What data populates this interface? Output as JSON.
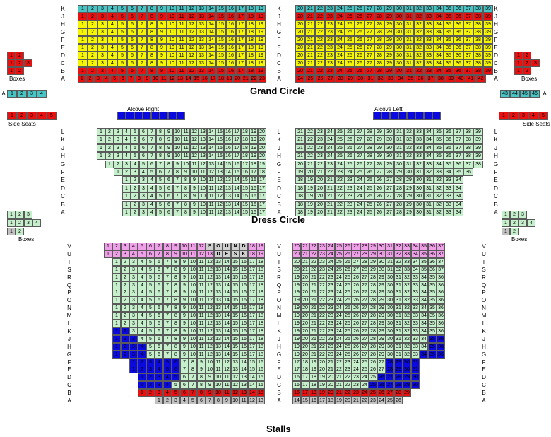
{
  "titles": {
    "grand_circle": "Grand Circle",
    "dress_circle": "Dress Circle",
    "stalls": "Stalls"
  },
  "labels": {
    "boxes": "Boxes",
    "side_seats": "Side Seats",
    "alcove_right": "Alcove Right",
    "alcove_left": "Alcove Left",
    "sound": [
      "S",
      "O",
      "U",
      "N",
      "D"
    ],
    "desk": [
      "D",
      "E",
      "S",
      "K"
    ]
  },
  "colors": {
    "teal": "#49c4c4",
    "yellow": "#f6f600",
    "red": "#ea1010",
    "green": "#c6f0cc",
    "blue": "#0a0ae0",
    "pink": "#f0a0e8",
    "grey": "#c2c2c2"
  },
  "grand_circle": {
    "rows": [
      {
        "row": "K",
        "left": [
          1,
          19
        ],
        "right": [
          20,
          39
        ],
        "color": "teal"
      },
      {
        "row": "J",
        "left": [
          1,
          19
        ],
        "right": [
          20,
          39
        ],
        "color": "red"
      },
      {
        "row": "H",
        "left": [
          1,
          19
        ],
        "right": [
          20,
          39
        ],
        "color": "yellow"
      },
      {
        "row": "G",
        "left": [
          1,
          19
        ],
        "right": [
          20,
          39
        ],
        "color": "yellow"
      },
      {
        "row": "F",
        "left": [
          1,
          19
        ],
        "right": [
          20,
          39
        ],
        "color": "yellow"
      },
      {
        "row": "E",
        "left": [
          1,
          19
        ],
        "right": [
          20,
          39
        ],
        "color": "yellow"
      },
      {
        "row": "D",
        "left": [
          1,
          19
        ],
        "right": [
          20,
          39
        ],
        "color": "yellow"
      },
      {
        "row": "C",
        "left": [
          1,
          19
        ],
        "right": [
          20,
          39
        ],
        "color": "yellow"
      },
      {
        "row": "B",
        "left": [
          1,
          19
        ],
        "right": [
          20,
          39
        ],
        "color": "red"
      },
      {
        "row": "A",
        "left": [
          1,
          23
        ],
        "right": [
          24,
          42
        ],
        "color": "red"
      }
    ],
    "side_a_left": [
      1,
      2,
      3,
      4
    ],
    "side_a_right": [
      43,
      44,
      45,
      46
    ],
    "side_seats": [
      1,
      2,
      3,
      4,
      5
    ]
  },
  "dress_circle": {
    "rows": [
      {
        "row": "L",
        "left": [
          1,
          20
        ],
        "right": [
          21,
          39
        ]
      },
      {
        "row": "K",
        "left": [
          1,
          20
        ],
        "right": [
          21,
          39
        ]
      },
      {
        "row": "J",
        "left": [
          1,
          20
        ],
        "right": [
          21,
          39
        ]
      },
      {
        "row": "H",
        "left": [
          1,
          20
        ],
        "right": [
          21,
          39
        ]
      },
      {
        "row": "G",
        "left": [
          1,
          19
        ],
        "right": [
          20,
          38
        ]
      },
      {
        "row": "F",
        "left": [
          1,
          18
        ],
        "right": [
          19,
          36
        ]
      },
      {
        "row": "E",
        "left": [
          1,
          17
        ],
        "right": [
          18,
          34
        ]
      },
      {
        "row": "D",
        "left": [
          1,
          17
        ],
        "right": [
          18,
          34
        ]
      },
      {
        "row": "C",
        "left": [
          1,
          17
        ],
        "right": [
          18,
          34
        ]
      },
      {
        "row": "B",
        "left": [
          1,
          17
        ],
        "right": [
          18,
          34
        ]
      },
      {
        "row": "A",
        "left": [
          1,
          17
        ],
        "right": [
          18,
          34
        ]
      }
    ],
    "alcove_count": 8,
    "box_rows": [
      [
        1,
        2,
        3
      ],
      [
        1,
        2,
        3,
        4
      ],
      [
        1,
        2
      ]
    ]
  },
  "stalls": {
    "rows": [
      {
        "row": "V",
        "left": [
          1,
          19
        ],
        "right": [
          20,
          37
        ],
        "color": "pink"
      },
      {
        "row": "U",
        "left": [
          1,
          19
        ],
        "right": [
          20,
          37
        ],
        "color": "pink"
      },
      {
        "row": "T",
        "left": [
          1,
          18
        ],
        "right": [
          20,
          37
        ],
        "color": "green"
      },
      {
        "row": "S",
        "left": [
          1,
          18
        ],
        "right": [
          20,
          37
        ],
        "color": "green"
      },
      {
        "row": "R",
        "left": [
          1,
          18
        ],
        "right": [
          19,
          36
        ],
        "color": "green"
      },
      {
        "row": "Q",
        "left": [
          1,
          18
        ],
        "right": [
          19,
          36
        ],
        "color": "green"
      },
      {
        "row": "P",
        "left": [
          1,
          18
        ],
        "right": [
          19,
          36
        ],
        "color": "green"
      },
      {
        "row": "O",
        "left": [
          1,
          18
        ],
        "right": [
          19,
          36
        ],
        "color": "green"
      },
      {
        "row": "N",
        "left": [
          1,
          18
        ],
        "right": [
          19,
          36
        ],
        "color": "green"
      },
      {
        "row": "M",
        "left": [
          1,
          18
        ],
        "right": [
          19,
          36
        ],
        "color": "green"
      },
      {
        "row": "L",
        "left": [
          1,
          18
        ],
        "right": [
          19,
          36
        ],
        "color": "green"
      },
      {
        "row": "K",
        "left": [
          1,
          18
        ],
        "right": [
          19,
          36
        ],
        "color": "green"
      },
      {
        "row": "J",
        "left": [
          1,
          18
        ],
        "right": [
          19,
          36
        ],
        "color": "green"
      },
      {
        "row": "H",
        "left": [
          1,
          18
        ],
        "right": [
          19,
          36
        ],
        "color": "green"
      },
      {
        "row": "G",
        "left": [
          1,
          18
        ],
        "right": [
          19,
          36
        ],
        "color": "green"
      },
      {
        "row": "F",
        "left": [
          1,
          16
        ],
        "right": [
          17,
          31
        ],
        "color": "green"
      },
      {
        "row": "E",
        "left": [
          1,
          16
        ],
        "right": [
          17,
          31
        ],
        "color": "green"
      },
      {
        "row": "D",
        "left": [
          1,
          15
        ],
        "right": [
          16,
          30
        ],
        "color": "green"
      },
      {
        "row": "C",
        "left": [
          1,
          15
        ],
        "right": [
          16,
          30
        ],
        "color": "green"
      },
      {
        "row": "B",
        "left": [
          1,
          15
        ],
        "right": [
          16,
          29
        ],
        "color": "red"
      },
      {
        "row": "A",
        "left": [
          1,
          13
        ],
        "right": [
          14,
          26
        ],
        "color": "grey"
      }
    ]
  }
}
